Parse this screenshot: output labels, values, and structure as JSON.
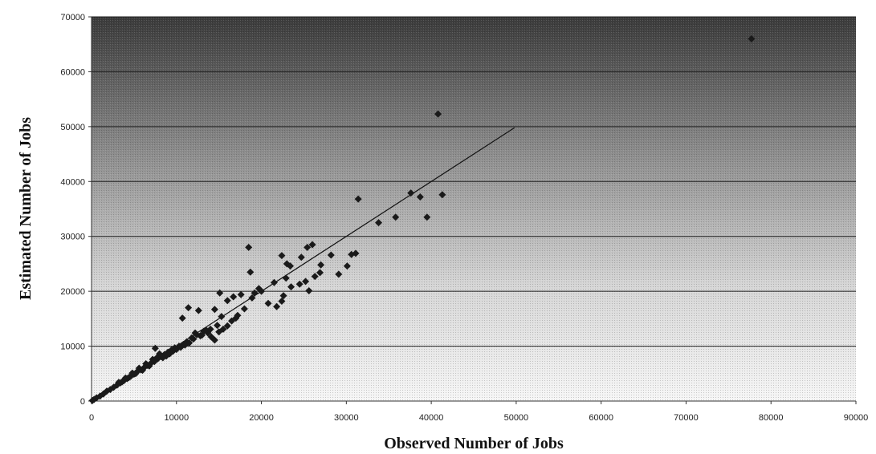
{
  "chart_data": {
    "type": "scatter",
    "title": "",
    "xlabel": "Observed Number of Jobs",
    "ylabel": "Estimated Number of Jobs",
    "xlim": [
      0,
      90000
    ],
    "ylim": [
      0,
      70000
    ],
    "xticks": [
      0,
      10000,
      20000,
      30000,
      40000,
      50000,
      60000,
      70000,
      80000,
      90000
    ],
    "yticks": [
      0,
      10000,
      20000,
      30000,
      40000,
      50000,
      60000,
      70000
    ],
    "grid": "horizontal",
    "background": "gradient dark top to light bottom",
    "marker": "diamond",
    "marker_color": "#1a1a1a",
    "reference_line": {
      "x": [
        0,
        49800
      ],
      "y": [
        0,
        49800
      ]
    },
    "points": [
      [
        77700,
        66000
      ],
      [
        40800,
        52300
      ],
      [
        31400,
        36800
      ],
      [
        33800,
        32500
      ],
      [
        35800,
        33500
      ],
      [
        37600,
        37900
      ],
      [
        38700,
        37200
      ],
      [
        39500,
        33500
      ],
      [
        41300,
        37600
      ],
      [
        18500,
        28000
      ],
      [
        18700,
        23500
      ],
      [
        22400,
        26500
      ],
      [
        23000,
        25000
      ],
      [
        24700,
        26200
      ],
      [
        25400,
        28000
      ],
      [
        26000,
        28500
      ],
      [
        27000,
        24800
      ],
      [
        28200,
        26600
      ],
      [
        29100,
        23100
      ],
      [
        30100,
        24600
      ],
      [
        30600,
        26700
      ],
      [
        31100,
        26900
      ],
      [
        10700,
        15100
      ],
      [
        11400,
        17000
      ],
      [
        12600,
        16500
      ],
      [
        14500,
        16700
      ],
      [
        15100,
        19700
      ],
      [
        16000,
        18300
      ],
      [
        16700,
        19000
      ],
      [
        15300,
        15400
      ],
      [
        17200,
        15600
      ],
      [
        18000,
        16800
      ],
      [
        19200,
        19700
      ],
      [
        20000,
        20000
      ],
      [
        20800,
        17800
      ],
      [
        21800,
        17200
      ],
      [
        22600,
        19200
      ],
      [
        22400,
        18200
      ],
      [
        23500,
        20800
      ],
      [
        24500,
        21300
      ],
      [
        25200,
        21800
      ],
      [
        25600,
        20100
      ],
      [
        26300,
        22700
      ],
      [
        26900,
        23400
      ],
      [
        21500,
        21600
      ],
      [
        22900,
        22400
      ],
      [
        23400,
        24600
      ],
      [
        17600,
        19400
      ],
      [
        18900,
        18800
      ],
      [
        19700,
        20500
      ],
      [
        13200,
        12700
      ],
      [
        13700,
        12400
      ],
      [
        14100,
        11700
      ],
      [
        14500,
        11100
      ],
      [
        15000,
        12600
      ],
      [
        15500,
        13100
      ],
      [
        16000,
        13700
      ],
      [
        16500,
        14600
      ],
      [
        17000,
        15100
      ],
      [
        12800,
        11900
      ],
      [
        12400,
        12100
      ],
      [
        11800,
        11500
      ],
      [
        11200,
        10800
      ],
      [
        10800,
        10300
      ],
      [
        10300,
        10000
      ],
      [
        9800,
        9700
      ],
      [
        9400,
        9300
      ],
      [
        9000,
        8900
      ],
      [
        8600,
        8500
      ],
      [
        8200,
        8100
      ],
      [
        7800,
        7700
      ],
      [
        7500,
        9600
      ],
      [
        7400,
        7200
      ],
      [
        7000,
        6900
      ],
      [
        6600,
        6500
      ],
      [
        6200,
        6100
      ],
      [
        5800,
        5700
      ],
      [
        5400,
        5400
      ],
      [
        5000,
        4900
      ],
      [
        4600,
        4500
      ],
      [
        4200,
        4100
      ],
      [
        3800,
        3700
      ],
      [
        3400,
        3300
      ],
      [
        3000,
        2900
      ],
      [
        2600,
        2500
      ],
      [
        2200,
        2100
      ],
      [
        1800,
        1800
      ],
      [
        1400,
        1300
      ],
      [
        1000,
        900
      ],
      [
        600,
        600
      ],
      [
        300,
        300
      ],
      [
        100,
        100
      ],
      [
        8800,
        8200
      ],
      [
        9200,
        8600
      ],
      [
        9600,
        9100
      ],
      [
        10000,
        9400
      ],
      [
        10500,
        9800
      ],
      [
        11000,
        10200
      ],
      [
        11500,
        10600
      ],
      [
        8400,
        7900
      ],
      [
        8000,
        8600
      ],
      [
        7700,
        7900
      ],
      [
        7200,
        7600
      ],
      [
        6800,
        6400
      ],
      [
        6400,
        6800
      ],
      [
        6000,
        5600
      ],
      [
        5600,
        6000
      ],
      [
        5200,
        5000
      ],
      [
        4800,
        5100
      ],
      [
        4400,
        4300
      ],
      [
        4000,
        4200
      ],
      [
        3600,
        3500
      ],
      [
        3200,
        3400
      ],
      [
        12000,
        11300
      ],
      [
        12200,
        12400
      ],
      [
        13000,
        12000
      ],
      [
        13500,
        12900
      ],
      [
        14000,
        13100
      ],
      [
        14800,
        13800
      ]
    ]
  }
}
